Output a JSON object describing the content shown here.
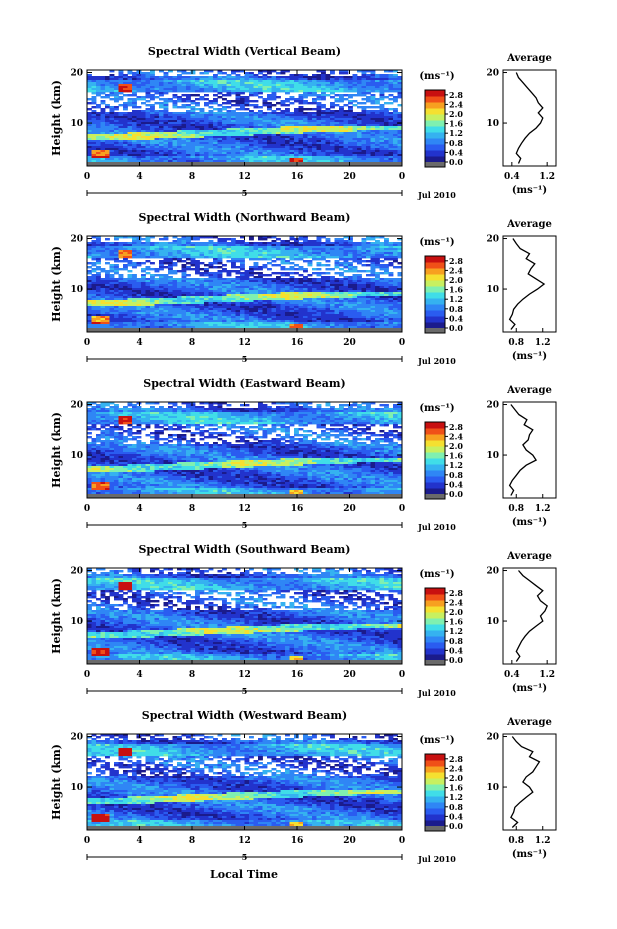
{
  "figure": {
    "xlabel": "Local Time",
    "colors": {
      "colormap": [
        "#1b1b8c",
        "#2233cc",
        "#2a5cf0",
        "#2f86f5",
        "#35b2f0",
        "#40dde8",
        "#7ff0b0",
        "#c8f060",
        "#f5e030",
        "#f7a020",
        "#f05018",
        "#c81010"
      ],
      "floor": "#6a6a6a",
      "line": "#000000"
    }
  },
  "chart_data": [
    {
      "type": "heatmap",
      "title": "Spectral Width (Vertical Beam)",
      "ylabel": "Height (km)",
      "x_ticks": [
        "0",
        "4",
        "8",
        "12",
        "16",
        "20",
        "0"
      ],
      "y_ticks": [
        "20",
        "10"
      ],
      "xlim": [
        0,
        24
      ],
      "ylim": [
        1.5,
        20.5
      ],
      "date_label": "Jul 2010",
      "date_marker": "5",
      "colorbar": {
        "unit": "(ms⁻¹)",
        "ticks": [
          "2.8",
          "2.4",
          "2.0",
          "1.6",
          "1.2",
          "0.8",
          "0.4",
          "0.0"
        ],
        "range": [
          0.0,
          3.0
        ]
      },
      "average": {
        "title": "Average",
        "xlabel": "(ms⁻¹)",
        "x_ticks": [
          "0.4",
          "1.2"
        ],
        "y_ticks": [
          "20",
          "10"
        ],
        "xlim": [
          0.2,
          1.4
        ],
        "heights": [
          2,
          3,
          4,
          5,
          6,
          7,
          8,
          9,
          10,
          11,
          12,
          13,
          14,
          15,
          16,
          17,
          18,
          19,
          20
        ],
        "values": [
          0.55,
          0.6,
          0.5,
          0.55,
          0.62,
          0.7,
          0.8,
          0.95,
          1.05,
          1.1,
          1.0,
          1.1,
          1.0,
          0.95,
          0.85,
          0.75,
          0.65,
          0.55,
          0.5
        ]
      }
    },
    {
      "type": "heatmap",
      "title": "Spectral Width (Northward Beam)",
      "ylabel": "Height (km)",
      "x_ticks": [
        "0",
        "4",
        "8",
        "12",
        "16",
        "20",
        "0"
      ],
      "y_ticks": [
        "20",
        "10"
      ],
      "xlim": [
        0,
        24
      ],
      "ylim": [
        1.5,
        20.5
      ],
      "date_label": "Jul 2010",
      "date_marker": "5",
      "colorbar": {
        "unit": "(ms⁻¹)",
        "ticks": [
          "2.8",
          "2.4",
          "2.0",
          "1.6",
          "1.2",
          "0.8",
          "0.4",
          "0.0"
        ],
        "range": [
          0.0,
          3.0
        ]
      },
      "average": {
        "title": "Average",
        "xlabel": "(ms⁻¹)",
        "x_ticks": [
          "0.8",
          "1.2"
        ],
        "y_ticks": [
          "20",
          "10"
        ],
        "xlim": [
          0.6,
          1.4
        ],
        "heights": [
          2,
          3,
          4,
          5,
          6,
          7,
          8,
          9,
          10,
          11,
          12,
          13,
          14,
          15,
          16,
          17,
          18,
          19,
          20
        ],
        "values": [
          0.72,
          0.78,
          0.7,
          0.74,
          0.76,
          0.82,
          0.9,
          1.0,
          1.12,
          1.22,
          1.1,
          0.98,
          1.02,
          1.08,
          0.95,
          1.0,
          0.86,
          0.8,
          0.75
        ]
      }
    },
    {
      "type": "heatmap",
      "title": "Spectral Width (Eastward Beam)",
      "ylabel": "Height (km)",
      "x_ticks": [
        "0",
        "4",
        "8",
        "12",
        "16",
        "20",
        "0"
      ],
      "y_ticks": [
        "20",
        "10"
      ],
      "xlim": [
        0,
        24
      ],
      "ylim": [
        1.5,
        20.5
      ],
      "date_label": "Jul 2010",
      "date_marker": "5",
      "colorbar": {
        "unit": "(ms⁻¹)",
        "ticks": [
          "2.8",
          "2.4",
          "2.0",
          "1.6",
          "1.2",
          "0.8",
          "0.4",
          "0.0"
        ],
        "range": [
          0.0,
          3.0
        ]
      },
      "average": {
        "title": "Average",
        "xlabel": "(ms⁻¹)",
        "x_ticks": [
          "0.8",
          "1.2"
        ],
        "y_ticks": [
          "20",
          "10"
        ],
        "xlim": [
          0.6,
          1.4
        ],
        "heights": [
          2,
          3,
          4,
          5,
          6,
          7,
          8,
          9,
          10,
          11,
          12,
          13,
          14,
          15,
          16,
          17,
          18,
          19,
          20
        ],
        "values": [
          0.72,
          0.76,
          0.7,
          0.74,
          0.8,
          0.86,
          0.95,
          1.1,
          1.05,
          0.95,
          0.9,
          0.98,
          1.0,
          1.05,
          0.92,
          0.96,
          0.84,
          0.78,
          0.72
        ]
      }
    },
    {
      "type": "heatmap",
      "title": "Spectral Width (Southward Beam)",
      "ylabel": "Height (km)",
      "x_ticks": [
        "0",
        "4",
        "8",
        "12",
        "16",
        "20",
        "0"
      ],
      "y_ticks": [
        "20",
        "10"
      ],
      "xlim": [
        0,
        24
      ],
      "ylim": [
        1.5,
        20.5
      ],
      "date_label": "Jul 2010",
      "date_marker": "5",
      "colorbar": {
        "unit": "(ms⁻¹)",
        "ticks": [
          "2.8",
          "2.4",
          "2.0",
          "1.6",
          "1.2",
          "0.8",
          "0.4",
          "0.0"
        ],
        "range": [
          0.0,
          3.0
        ]
      },
      "average": {
        "title": "Average",
        "xlabel": "(ms⁻¹)",
        "x_ticks": [
          "0.4",
          "1.2"
        ],
        "y_ticks": [
          "20",
          "10"
        ],
        "xlim": [
          0.2,
          1.4
        ],
        "heights": [
          2,
          3,
          4,
          5,
          6,
          7,
          8,
          9,
          10,
          11,
          12,
          13,
          14,
          15,
          16,
          17,
          18,
          19,
          20
        ],
        "values": [
          0.5,
          0.58,
          0.5,
          0.56,
          0.62,
          0.7,
          0.8,
          0.95,
          1.1,
          1.05,
          1.15,
          1.2,
          1.05,
          0.98,
          1.1,
          0.95,
          0.8,
          0.65,
          0.55
        ]
      }
    },
    {
      "type": "heatmap",
      "title": "Spectral Width (Westward Beam)",
      "ylabel": "Height (km)",
      "x_ticks": [
        "0",
        "4",
        "8",
        "12",
        "16",
        "20",
        "0"
      ],
      "y_ticks": [
        "20",
        "10"
      ],
      "xlim": [
        0,
        24
      ],
      "ylim": [
        1.5,
        20.5
      ],
      "date_label": "Jul 2010",
      "date_marker": "5",
      "colorbar": {
        "unit": "(ms⁻¹)",
        "ticks": [
          "2.8",
          "2.4",
          "2.0",
          "1.6",
          "1.2",
          "0.8",
          "0.4",
          "0.0"
        ],
        "range": [
          0.0,
          3.0
        ]
      },
      "average": {
        "title": "Average",
        "xlabel": "(ms⁻¹)",
        "x_ticks": [
          "0.8",
          "1.2"
        ],
        "y_ticks": [
          "20",
          "10"
        ],
        "xlim": [
          0.6,
          1.4
        ],
        "heights": [
          2,
          3,
          4,
          5,
          6,
          7,
          8,
          9,
          10,
          11,
          12,
          13,
          14,
          15,
          16,
          17,
          18,
          19,
          20
        ],
        "values": [
          0.74,
          0.82,
          0.72,
          0.76,
          0.78,
          0.86,
          0.95,
          1.05,
          1.0,
          0.9,
          0.95,
          1.05,
          1.1,
          1.15,
          1.0,
          1.05,
          0.88,
          0.8,
          0.74
        ]
      }
    }
  ]
}
